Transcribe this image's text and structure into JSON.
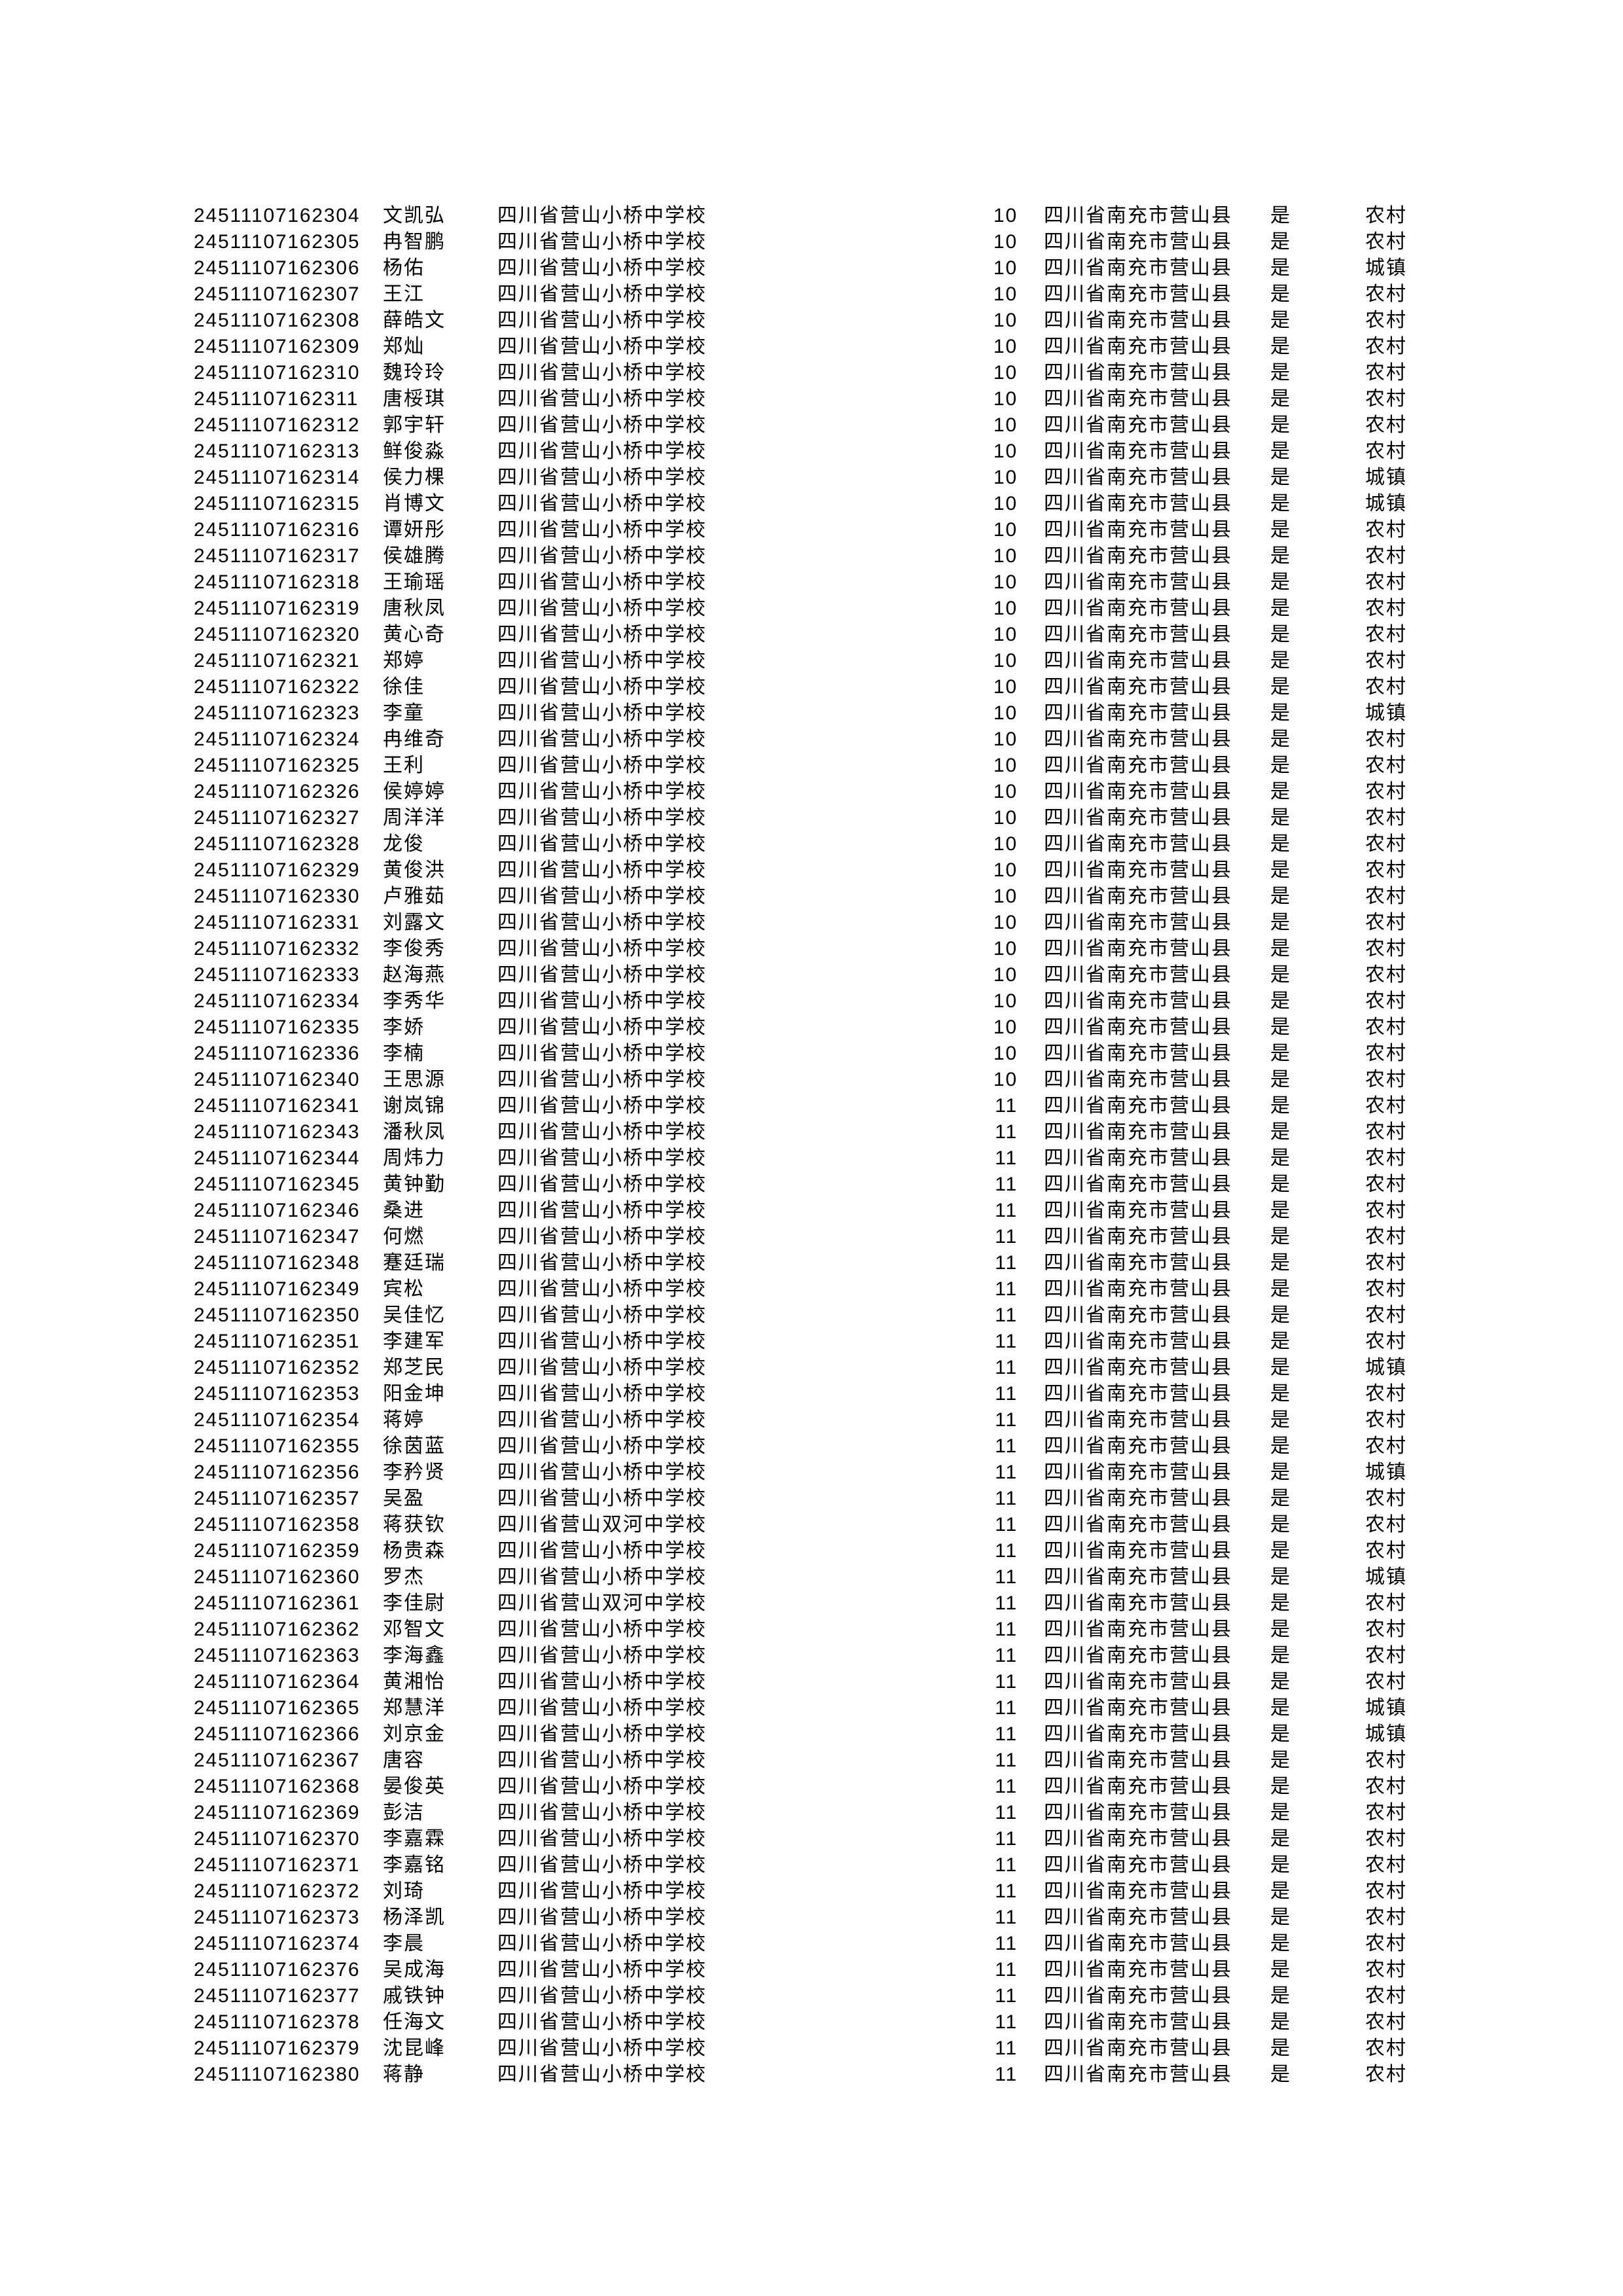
{
  "page": {
    "background_color": "#ffffff",
    "text_color": "#000000"
  },
  "table": {
    "county": "四川省南充市营山县",
    "confirm_label": "是",
    "school_options": [
      "四川省营山小桥中学校",
      "四川省营山双河中学校"
    ],
    "residence_options": [
      "农村",
      "城镇"
    ],
    "grade_options": [
      "10",
      "11"
    ],
    "rows": [
      [
        "24511107162304",
        "文凯弘",
        "四川省营山小桥中学校",
        "10",
        "农村"
      ],
      [
        "24511107162305",
        "冉智鹏",
        "四川省营山小桥中学校",
        "10",
        "农村"
      ],
      [
        "24511107162306",
        "杨佑",
        "四川省营山小桥中学校",
        "10",
        "城镇"
      ],
      [
        "24511107162307",
        "王江",
        "四川省营山小桥中学校",
        "10",
        "农村"
      ],
      [
        "24511107162308",
        "薛皓文",
        "四川省营山小桥中学校",
        "10",
        "农村"
      ],
      [
        "24511107162309",
        "郑灿",
        "四川省营山小桥中学校",
        "10",
        "农村"
      ],
      [
        "24511107162310",
        "魏玲玲",
        "四川省营山小桥中学校",
        "10",
        "农村"
      ],
      [
        "24511107162311",
        "唐桵琪",
        "四川省营山小桥中学校",
        "10",
        "农村"
      ],
      [
        "24511107162312",
        "郭宇轩",
        "四川省营山小桥中学校",
        "10",
        "农村"
      ],
      [
        "24511107162313",
        "鲜俊淼",
        "四川省营山小桥中学校",
        "10",
        "农村"
      ],
      [
        "24511107162314",
        "侯力棵",
        "四川省营山小桥中学校",
        "10",
        "城镇"
      ],
      [
        "24511107162315",
        "肖博文",
        "四川省营山小桥中学校",
        "10",
        "城镇"
      ],
      [
        "24511107162316",
        "谭妍彤",
        "四川省营山小桥中学校",
        "10",
        "农村"
      ],
      [
        "24511107162317",
        "侯雄腾",
        "四川省营山小桥中学校",
        "10",
        "农村"
      ],
      [
        "24511107162318",
        "王瑜瑶",
        "四川省营山小桥中学校",
        "10",
        "农村"
      ],
      [
        "24511107162319",
        "唐秋凤",
        "四川省营山小桥中学校",
        "10",
        "农村"
      ],
      [
        "24511107162320",
        "黄心奇",
        "四川省营山小桥中学校",
        "10",
        "农村"
      ],
      [
        "24511107162321",
        "郑婷",
        "四川省营山小桥中学校",
        "10",
        "农村"
      ],
      [
        "24511107162322",
        "徐佳",
        "四川省营山小桥中学校",
        "10",
        "农村"
      ],
      [
        "24511107162323",
        "李童",
        "四川省营山小桥中学校",
        "10",
        "城镇"
      ],
      [
        "24511107162324",
        "冉维奇",
        "四川省营山小桥中学校",
        "10",
        "农村"
      ],
      [
        "24511107162325",
        "王利",
        "四川省营山小桥中学校",
        "10",
        "农村"
      ],
      [
        "24511107162326",
        "侯婷婷",
        "四川省营山小桥中学校",
        "10",
        "农村"
      ],
      [
        "24511107162327",
        "周洋洋",
        "四川省营山小桥中学校",
        "10",
        "农村"
      ],
      [
        "24511107162328",
        "龙俊",
        "四川省营山小桥中学校",
        "10",
        "农村"
      ],
      [
        "24511107162329",
        "黄俊洪",
        "四川省营山小桥中学校",
        "10",
        "农村"
      ],
      [
        "24511107162330",
        "卢雅茹",
        "四川省营山小桥中学校",
        "10",
        "农村"
      ],
      [
        "24511107162331",
        "刘露文",
        "四川省营山小桥中学校",
        "10",
        "农村"
      ],
      [
        "24511107162332",
        "李俊秀",
        "四川省营山小桥中学校",
        "10",
        "农村"
      ],
      [
        "24511107162333",
        "赵海燕",
        "四川省营山小桥中学校",
        "10",
        "农村"
      ],
      [
        "24511107162334",
        "李秀华",
        "四川省营山小桥中学校",
        "10",
        "农村"
      ],
      [
        "24511107162335",
        "李娇",
        "四川省营山小桥中学校",
        "10",
        "农村"
      ],
      [
        "24511107162336",
        "李楠",
        "四川省营山小桥中学校",
        "10",
        "农村"
      ],
      [
        "24511107162340",
        "王思源",
        "四川省营山小桥中学校",
        "10",
        "农村"
      ],
      [
        "24511107162341",
        "谢岚锦",
        "四川省营山小桥中学校",
        "11",
        "农村"
      ],
      [
        "24511107162343",
        "潘秋凤",
        "四川省营山小桥中学校",
        "11",
        "农村"
      ],
      [
        "24511107162344",
        "周炜力",
        "四川省营山小桥中学校",
        "11",
        "农村"
      ],
      [
        "24511107162345",
        "黄钟勤",
        "四川省营山小桥中学校",
        "11",
        "农村"
      ],
      [
        "24511107162346",
        "桑进",
        "四川省营山小桥中学校",
        "11",
        "农村"
      ],
      [
        "24511107162347",
        "何燃",
        "四川省营山小桥中学校",
        "11",
        "农村"
      ],
      [
        "24511107162348",
        "蹇廷瑞",
        "四川省营山小桥中学校",
        "11",
        "农村"
      ],
      [
        "24511107162349",
        "宾松",
        "四川省营山小桥中学校",
        "11",
        "农村"
      ],
      [
        "24511107162350",
        "吴佳忆",
        "四川省营山小桥中学校",
        "11",
        "农村"
      ],
      [
        "24511107162351",
        "李建军",
        "四川省营山小桥中学校",
        "11",
        "农村"
      ],
      [
        "24511107162352",
        "郑芝民",
        "四川省营山小桥中学校",
        "11",
        "城镇"
      ],
      [
        "24511107162353",
        "阳金坤",
        "四川省营山小桥中学校",
        "11",
        "农村"
      ],
      [
        "24511107162354",
        "蒋婷",
        "四川省营山小桥中学校",
        "11",
        "农村"
      ],
      [
        "24511107162355",
        "徐茵蓝",
        "四川省营山小桥中学校",
        "11",
        "农村"
      ],
      [
        "24511107162356",
        "李矜贤",
        "四川省营山小桥中学校",
        "11",
        "城镇"
      ],
      [
        "24511107162357",
        "吴盈",
        "四川省营山小桥中学校",
        "11",
        "农村"
      ],
      [
        "24511107162358",
        "蒋获钦",
        "四川省营山双河中学校",
        "11",
        "农村"
      ],
      [
        "24511107162359",
        "杨贵森",
        "四川省营山小桥中学校",
        "11",
        "农村"
      ],
      [
        "24511107162360",
        "罗杰",
        "四川省营山小桥中学校",
        "11",
        "城镇"
      ],
      [
        "24511107162361",
        "李佳尉",
        "四川省营山双河中学校",
        "11",
        "农村"
      ],
      [
        "24511107162362",
        "邓智文",
        "四川省营山小桥中学校",
        "11",
        "农村"
      ],
      [
        "24511107162363",
        "李海鑫",
        "四川省营山小桥中学校",
        "11",
        "农村"
      ],
      [
        "24511107162364",
        "黄湘怡",
        "四川省营山小桥中学校",
        "11",
        "农村"
      ],
      [
        "24511107162365",
        "郑慧洋",
        "四川省营山小桥中学校",
        "11",
        "城镇"
      ],
      [
        "24511107162366",
        "刘京金",
        "四川省营山小桥中学校",
        "11",
        "城镇"
      ],
      [
        "24511107162367",
        "唐容",
        "四川省营山小桥中学校",
        "11",
        "农村"
      ],
      [
        "24511107162368",
        "晏俊英",
        "四川省营山小桥中学校",
        "11",
        "农村"
      ],
      [
        "24511107162369",
        "彭洁",
        "四川省营山小桥中学校",
        "11",
        "农村"
      ],
      [
        "24511107162370",
        "李嘉霖",
        "四川省营山小桥中学校",
        "11",
        "农村"
      ],
      [
        "24511107162371",
        "李嘉铭",
        "四川省营山小桥中学校",
        "11",
        "农村"
      ],
      [
        "24511107162372",
        "刘琦",
        "四川省营山小桥中学校",
        "11",
        "农村"
      ],
      [
        "24511107162373",
        "杨泽凯",
        "四川省营山小桥中学校",
        "11",
        "农村"
      ],
      [
        "24511107162374",
        "李晨",
        "四川省营山小桥中学校",
        "11",
        "农村"
      ],
      [
        "24511107162376",
        "吴成海",
        "四川省营山小桥中学校",
        "11",
        "农村"
      ],
      [
        "24511107162377",
        "戚铁钟",
        "四川省营山小桥中学校",
        "11",
        "农村"
      ],
      [
        "24511107162378",
        "任海文",
        "四川省营山小桥中学校",
        "11",
        "农村"
      ],
      [
        "24511107162379",
        "沈昆峰",
        "四川省营山小桥中学校",
        "11",
        "农村"
      ],
      [
        "24511107162380",
        "蒋静",
        "四川省营山小桥中学校",
        "11",
        "农村"
      ]
    ]
  }
}
